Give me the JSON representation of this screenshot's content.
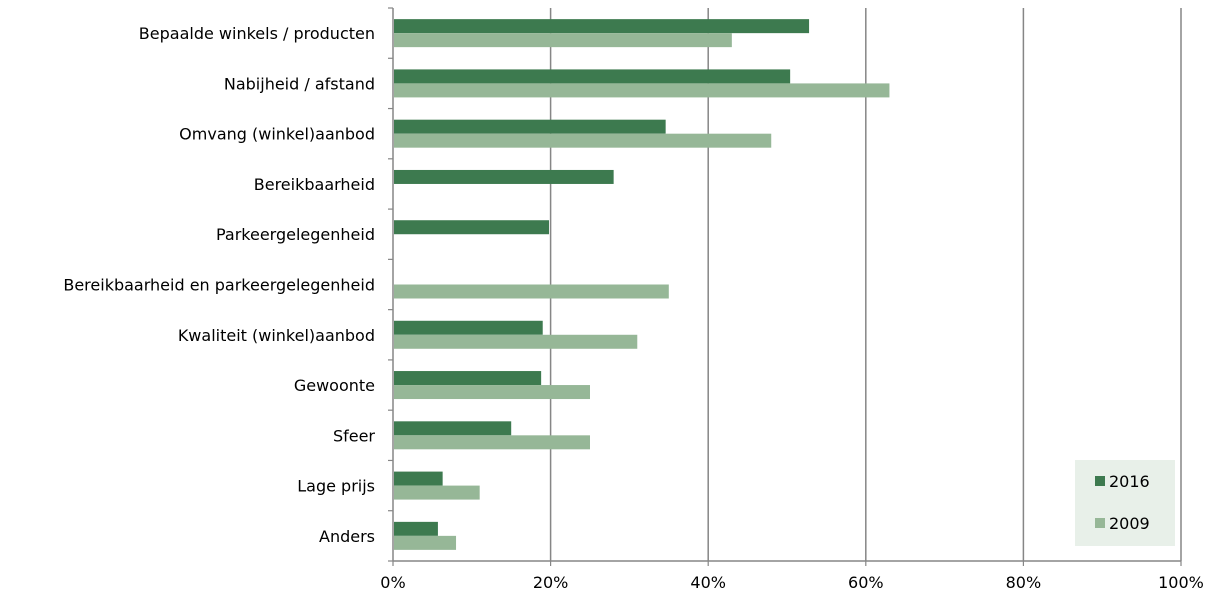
{
  "chart_data": {
    "type": "bar",
    "orientation": "horizontal",
    "categories": [
      "Bepaalde winkels / producten",
      "Nabijheid / afstand",
      "Omvang (winkel)aanbod",
      "Bereikbaarheid",
      "Parkeergelegenheid",
      "Bereikbaarheid en parkeergelegenheid",
      "Kwaliteit (winkel)aanbod",
      "Gewoonte",
      "Sfeer",
      "Lage prijs",
      "Anders"
    ],
    "series": [
      {
        "name": "2016",
        "color": "#3d7a4f",
        "values": [
          52.8,
          50.4,
          34.6,
          28.0,
          19.8,
          null,
          19.0,
          18.8,
          15.0,
          6.3,
          5.7
        ]
      },
      {
        "name": "2009",
        "color": "#96b797",
        "values": [
          43.0,
          63.0,
          48.0,
          null,
          null,
          35.0,
          31.0,
          25.0,
          25.0,
          11.0,
          8.0
        ]
      }
    ],
    "xlim": [
      0,
      100
    ],
    "xticks": [
      "0%",
      "20%",
      "40%",
      "60%",
      "80%",
      "100%"
    ],
    "title": "",
    "xlabel": "",
    "ylabel": "",
    "grid": "vertical",
    "legend_position": "bottom-right",
    "legend_background": "#e8f0e9",
    "gridline_color": "#868686"
  }
}
